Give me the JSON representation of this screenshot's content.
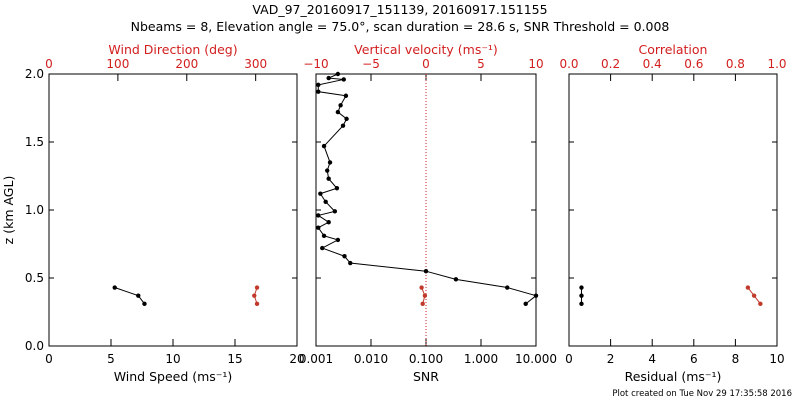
{
  "figure": {
    "title_line1": "VAD_97_20160917_151139, 20160917.151155",
    "title_line2": "Nbeams = 8, Elevation angle = 75.0°, scan duration = 28.6 s, SNR Threshold = 0.008",
    "footer": "Plot created on Tue Nov 29 17:35:58 2016",
    "colors": {
      "axis": "#000000",
      "secondary": "#d21e1e",
      "primary_series": "#000000",
      "secondary_series": "#c0392b"
    }
  },
  "chart_data": [
    {
      "type": "scatter",
      "panel": "wind",
      "ylabel": "z (km AGL)",
      "ylim": [
        0,
        2
      ],
      "yticks": [
        "0.0",
        "0.5",
        "1.0",
        "1.5",
        "2.0"
      ],
      "xlabel": "Wind Speed (ms⁻¹)",
      "xlim": [
        0,
        20
      ],
      "xticks": [
        "0",
        "5",
        "10",
        "15",
        "20"
      ],
      "top_xlabel": "Wind Direction (deg)",
      "top_xlim": [
        0,
        360
      ],
      "top_xticks": [
        "0",
        "100",
        "200",
        "300"
      ],
      "series": [
        {
          "axis": "bottom",
          "color": "#000000",
          "points": [
            {
              "x": 5.3,
              "y": 0.43
            },
            {
              "x": 7.2,
              "y": 0.37
            },
            {
              "x": 7.7,
              "y": 0.31
            }
          ]
        },
        {
          "axis": "top",
          "color": "#c0392b",
          "points": [
            {
              "x": 302,
              "y": 0.43
            },
            {
              "x": 298,
              "y": 0.37
            },
            {
              "x": 302,
              "y": 0.31
            }
          ]
        }
      ]
    },
    {
      "type": "line",
      "panel": "snr",
      "ylim": [
        0,
        2
      ],
      "xlabel": "SNR",
      "xscale": "log",
      "xlim": [
        0.001,
        10
      ],
      "xticks": [
        "0.001",
        "0.010",
        "0.100",
        "1.000",
        "10.000"
      ],
      "top_xlabel": "Vertical velocity (ms⁻¹)",
      "top_xlim": [
        -10,
        10
      ],
      "top_xticks": [
        "−10",
        "−5",
        "0",
        "5",
        "10"
      ],
      "zero_line": 0,
      "series": [
        {
          "axis": "bottom",
          "color": "#000000",
          "points": [
            {
              "x": 0.0025,
              "y": 2.0
            },
            {
              "x": 0.0017,
              "y": 1.97
            },
            {
              "x": 0.0032,
              "y": 1.96
            },
            {
              "x": 0.0011,
              "y": 1.92
            },
            {
              "x": 0.0011,
              "y": 1.87
            },
            {
              "x": 0.0035,
              "y": 1.84
            },
            {
              "x": 0.0028,
              "y": 1.77
            },
            {
              "x": 0.0025,
              "y": 1.72
            },
            {
              "x": 0.0036,
              "y": 1.67
            },
            {
              "x": 0.0031,
              "y": 1.62
            },
            {
              "x": 0.0014,
              "y": 1.47
            },
            {
              "x": 0.0018,
              "y": 1.35
            },
            {
              "x": 0.0016,
              "y": 1.29
            },
            {
              "x": 0.0017,
              "y": 1.23
            },
            {
              "x": 0.0024,
              "y": 1.16
            },
            {
              "x": 0.0012,
              "y": 1.12
            },
            {
              "x": 0.0015,
              "y": 1.06
            },
            {
              "x": 0.0022,
              "y": 0.99
            },
            {
              "x": 0.0011,
              "y": 0.96
            },
            {
              "x": 0.0017,
              "y": 0.91
            },
            {
              "x": 0.0011,
              "y": 0.87
            },
            {
              "x": 0.0014,
              "y": 0.81
            },
            {
              "x": 0.0025,
              "y": 0.78
            },
            {
              "x": 0.0013,
              "y": 0.72
            },
            {
              "x": 0.0033,
              "y": 0.66
            },
            {
              "x": 0.0042,
              "y": 0.61
            },
            {
              "x": 0.1,
              "y": 0.55
            },
            {
              "x": 0.35,
              "y": 0.49
            },
            {
              "x": 3.0,
              "y": 0.43
            },
            {
              "x": 10.0,
              "y": 0.37
            },
            {
              "x": 6.5,
              "y": 0.31
            }
          ]
        },
        {
          "axis": "top",
          "color": "#c0392b",
          "points": [
            {
              "x": -0.4,
              "y": 0.43
            },
            {
              "x": -0.1,
              "y": 0.37
            },
            {
              "x": -0.3,
              "y": 0.31
            }
          ]
        }
      ]
    },
    {
      "type": "scatter",
      "panel": "residual",
      "ylim": [
        0,
        2
      ],
      "xlabel": "Residual (ms⁻¹)",
      "xlim": [
        0,
        10
      ],
      "xticks": [
        "0",
        "2",
        "4",
        "6",
        "8",
        "10"
      ],
      "top_xlabel": "Correlation",
      "top_xlim": [
        0,
        1
      ],
      "top_xticks": [
        "0.0",
        "0.2",
        "0.4",
        "0.6",
        "0.8",
        "1.0"
      ],
      "series": [
        {
          "axis": "bottom",
          "color": "#000000",
          "points": [
            {
              "x": 0.6,
              "y": 0.43
            },
            {
              "x": 0.6,
              "y": 0.37
            },
            {
              "x": 0.6,
              "y": 0.31
            }
          ]
        },
        {
          "axis": "top",
          "color": "#c0392b",
          "points": [
            {
              "x": 0.86,
              "y": 0.43
            },
            {
              "x": 0.89,
              "y": 0.37
            },
            {
              "x": 0.92,
              "y": 0.31
            }
          ]
        }
      ]
    }
  ]
}
